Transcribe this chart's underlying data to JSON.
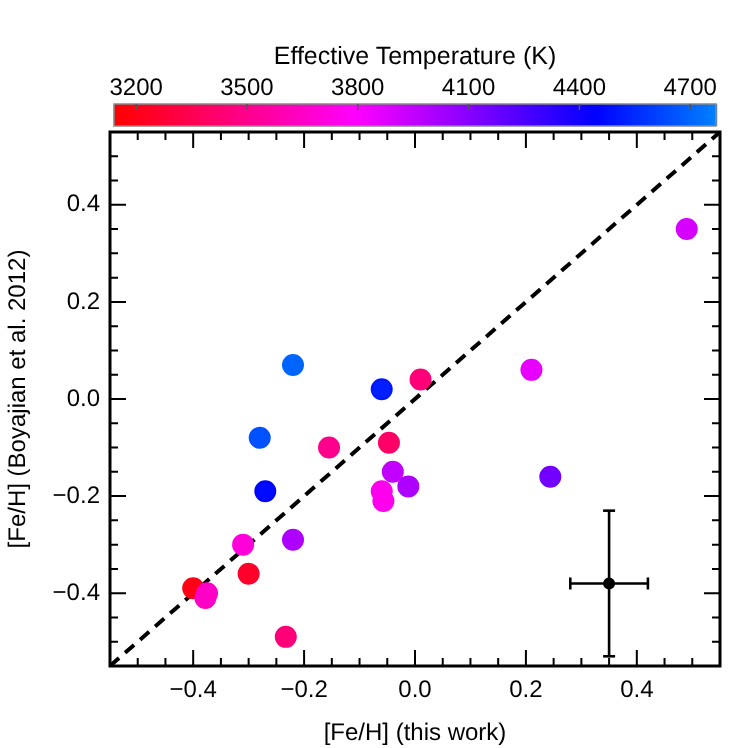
{
  "chart_data": {
    "type": "scatter",
    "xlabel": "[Fe/H] (this work)",
    "ylabel": "[Fe/H] (Boyajian et al. 2012)",
    "clabel": "Effective Temperature (K)",
    "clim": [
      3140,
      4770
    ],
    "cticks": [
      3200,
      3500,
      3800,
      4100,
      4400,
      4700
    ],
    "xlim": [
      -0.55,
      0.55
    ],
    "ylim": [
      -0.55,
      0.55
    ],
    "xticks": [
      {
        "value": -0.4,
        "label": "−0.4"
      },
      {
        "value": -0.2,
        "label": "−0.2"
      },
      {
        "value": 0,
        "label": "0.0"
      },
      {
        "value": 0.2,
        "label": "0.2"
      },
      {
        "value": 0.4,
        "label": "0.4"
      }
    ],
    "yticks": [
      {
        "value": -0.4,
        "label": "−0.4"
      },
      {
        "value": -0.2,
        "label": "−0.2"
      },
      {
        "value": 0,
        "label": "0.0"
      },
      {
        "value": 0.2,
        "label": "0.2"
      },
      {
        "value": 0.4,
        "label": "0.4"
      }
    ],
    "grid": false,
    "legend": false,
    "marker": "circle",
    "series": [
      {
        "colors": [
          "#d500ff",
          "#e800ff",
          "#ff0079",
          "#001eff",
          "#0064ff",
          "#0051ff",
          "#ff008d",
          "#ff0066",
          "#000aff",
          "#c100ff",
          "#ff00ef",
          "#ff00ef",
          "#ae00ff",
          "#7300ff",
          "#ae00ff",
          "#ff00db",
          "#ff002b",
          "#ff0017",
          "#ff00c7",
          "#ff00c7",
          "#ff0079"
        ],
        "x": [
          0.49,
          0.21,
          0.01,
          -0.06,
          -0.22,
          -0.28,
          -0.155,
          -0.047,
          -0.27,
          -0.04,
          -0.06,
          -0.057,
          -0.012,
          0.244,
          -0.22,
          -0.31,
          -0.3,
          -0.4,
          -0.375,
          -0.378,
          -0.233
        ],
        "values": [
          0.35,
          0.06,
          0.04,
          0.02,
          0.07,
          -0.08,
          -0.1,
          -0.09,
          -0.19,
          -0.15,
          -0.19,
          -0.21,
          -0.18,
          -0.16,
          -0.29,
          -0.3,
          -0.36,
          -0.39,
          -0.4,
          -0.41,
          -0.49
        ],
        "cvalues": [
          3900,
          3850,
          3450,
          4500,
          4700,
          4650,
          3500,
          3400,
          4450,
          3950,
          3750,
          3750,
          4000,
          4150,
          4000,
          3700,
          3250,
          3200,
          3650,
          3650,
          3450
        ]
      },
      {
        "color": "#000000",
        "x": [
          0.35
        ],
        "values": [
          -0.38
        ],
        "errors": [
          0.15
        ],
        "xerrors": [
          0.07
        ]
      },
      {
        "type": "line",
        "color": "#000000",
        "line_style": "dashed",
        "marker": "none",
        "x": [
          -0.55,
          0.55
        ],
        "values": [
          -0.55,
          0.55
        ]
      }
    ]
  }
}
